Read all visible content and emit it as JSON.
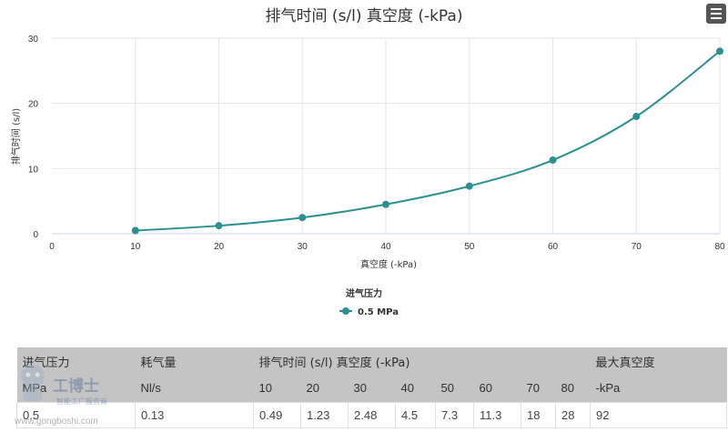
{
  "chart_data": {
    "type": "line",
    "title": "排气时间 (s/l) 真空度 (-kPa)",
    "xlabel": "真空度 (-kPa)",
    "ylabel": "排气时间 (s/l)",
    "xlim": [
      0,
      80
    ],
    "ylim": [
      0,
      30
    ],
    "xticks": [
      "0",
      "10",
      "20",
      "30",
      "40",
      "50",
      "60",
      "70",
      "80"
    ],
    "yticks": [
      "0",
      "10",
      "20",
      "30"
    ],
    "grid": true,
    "legend_title": "进气压力",
    "legend_position": "bottom-center",
    "series": [
      {
        "name": "0.5 MPa",
        "color": "#2b908f",
        "x": [
          10,
          20,
          30,
          40,
          50,
          60,
          70,
          80
        ],
        "y": [
          0.49,
          1.23,
          2.48,
          4.5,
          7.3,
          11.3,
          18,
          28
        ]
      }
    ]
  },
  "menu": {
    "icon": "hamburger-menu-icon"
  },
  "table": {
    "header1": [
      "进气压力",
      "耗气量",
      "排气时间 (s/l) 真空度 (-kPa)",
      "最大真空度"
    ],
    "header2": [
      "MPa",
      "Nl/s",
      "10",
      "20",
      "30",
      "40",
      "50",
      "60",
      "70",
      "80",
      "-kPa"
    ],
    "row": [
      "0.5",
      "0.13",
      "0.49",
      "1.23",
      "2.48",
      "4.5",
      "7.3",
      "11.3",
      "18",
      "28",
      "92"
    ]
  },
  "watermark": {
    "brand": "工博士",
    "tagline": "智能工厂服务商",
    "url": "www.gongboshi.com"
  }
}
